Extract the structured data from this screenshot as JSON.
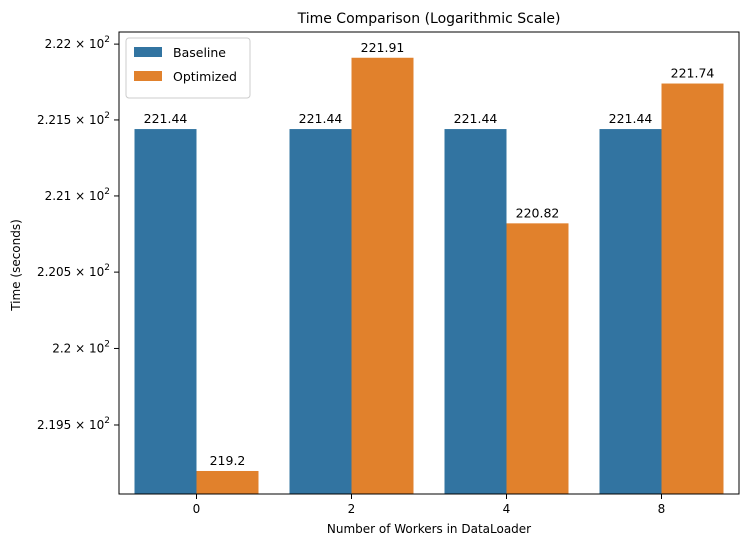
{
  "chart_data": {
    "type": "bar",
    "title": "Time Comparison (Logarithmic Scale)",
    "xlabel": "Number of Workers in DataLoader",
    "ylabel": "Time (seconds)",
    "categories": [
      "0",
      "2",
      "4",
      "8"
    ],
    "series": [
      {
        "name": "Baseline",
        "color": "#3274a1",
        "values": [
          221.44,
          221.44,
          221.44,
          221.44
        ],
        "labels": [
          "221.44",
          "221.44",
          "221.44",
          "221.44"
        ]
      },
      {
        "name": "Optimized",
        "color": "#e1812c",
        "values": [
          219.2,
          221.91,
          220.82,
          221.74
        ],
        "labels": [
          "219.2",
          "221.91",
          "220.82",
          "221.74"
        ]
      }
    ],
    "y_scale": "log",
    "ylim": [
      219.05,
      222.08
    ],
    "y_ticks": [
      {
        "value": 219.5,
        "mantissa": "2.195"
      },
      {
        "value": 220.0,
        "mantissa": "2.2"
      },
      {
        "value": 220.5,
        "mantissa": "2.205"
      },
      {
        "value": 221.0,
        "mantissa": "2.21"
      },
      {
        "value": 221.5,
        "mantissa": "2.215"
      },
      {
        "value": 222.0,
        "mantissa": "2.22"
      }
    ],
    "y_tick_base": "10",
    "y_tick_exponent": "2",
    "legend_position": "top-left",
    "grid": false
  }
}
